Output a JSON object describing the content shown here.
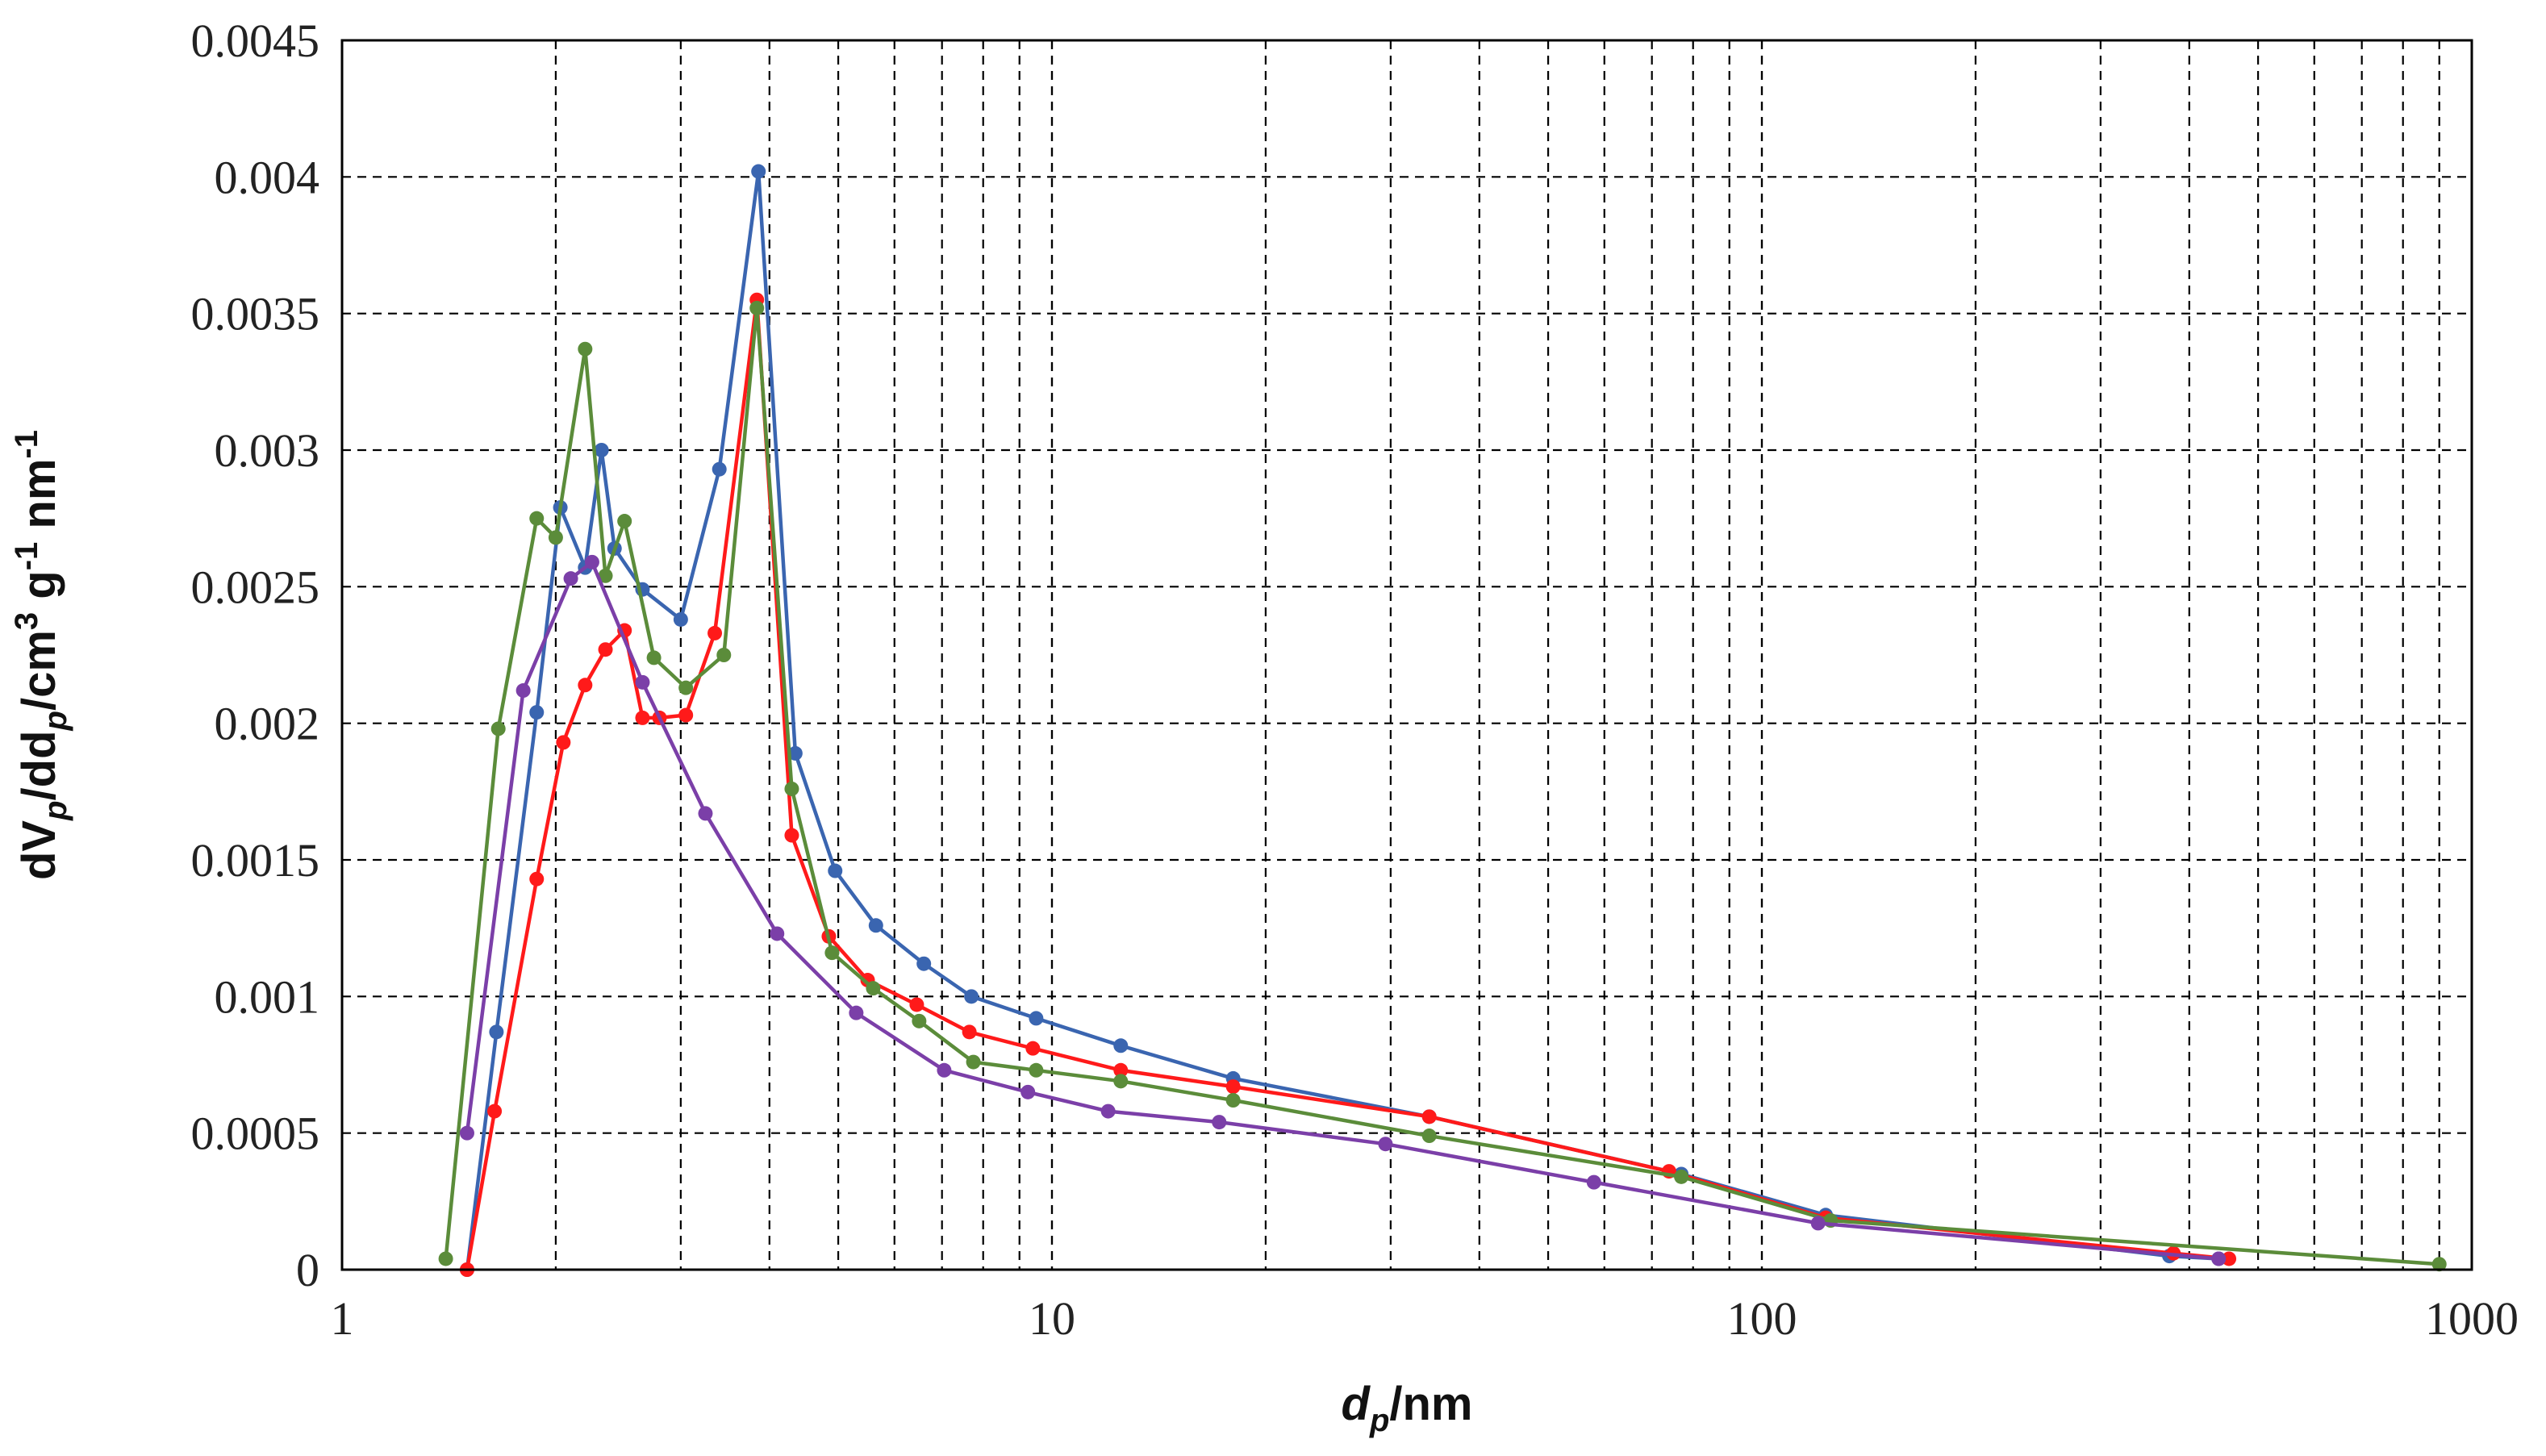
{
  "chart_data": {
    "type": "line",
    "title": "",
    "xlabel": {
      "main": "d",
      "sub": "p",
      "tail": "/nm"
    },
    "ylabel": {
      "p1": "dV",
      "s1": "p",
      "p2": "/dd",
      "s2": "p",
      "p3": "/cm",
      "sup1": "3",
      "p4": " g",
      "sup2": "-1",
      "p5": " nm",
      "sup3": "-1"
    },
    "x_scale": "log",
    "xlim": [
      1,
      1000
    ],
    "ylim": [
      0,
      0.0045
    ],
    "x_ticks": [
      "1",
      "10",
      "100",
      "1000"
    ],
    "y_ticks": [
      "0",
      "0.0005",
      "0.001",
      "0.0015",
      "0.002",
      "0.0025",
      "0.003",
      "0.0035",
      "0.004",
      "0.0045"
    ],
    "grid": true,
    "legend": "none",
    "series": [
      {
        "color": "#3A65B0",
        "points": [
          [
            1.5,
            0
          ],
          [
            1.65,
            0.00087
          ],
          [
            1.88,
            0.00204
          ],
          [
            2.03,
            0.00279
          ],
          [
            2.2,
            0.00257
          ],
          [
            2.32,
            0.003
          ],
          [
            2.42,
            0.00264
          ],
          [
            2.65,
            0.00249
          ],
          [
            3.0,
            0.00238
          ],
          [
            3.4,
            0.00293
          ],
          [
            3.86,
            0.00402
          ],
          [
            4.35,
            0.00189
          ],
          [
            4.95,
            0.00146
          ],
          [
            5.65,
            0.00126
          ],
          [
            6.6,
            0.00112
          ],
          [
            7.7,
            0.001
          ],
          [
            9.5,
            0.00092
          ],
          [
            12.5,
            0.00082
          ],
          [
            18,
            0.0007
          ],
          [
            34,
            0.00056
          ],
          [
            77,
            0.00035
          ],
          [
            123,
            0.0002
          ],
          [
            375,
            5e-05
          ],
          [
            440,
            4e-05
          ]
        ]
      },
      {
        "color": "#FF1A1A",
        "points": [
          [
            1.5,
            0
          ],
          [
            1.64,
            0.00058
          ],
          [
            1.88,
            0.00143
          ],
          [
            2.05,
            0.00193
          ],
          [
            2.2,
            0.00214
          ],
          [
            2.35,
            0.00227
          ],
          [
            2.5,
            0.00234
          ],
          [
            2.65,
            0.00202
          ],
          [
            2.8,
            0.00202
          ],
          [
            3.05,
            0.00203
          ],
          [
            3.35,
            0.00233
          ],
          [
            3.84,
            0.00355
          ],
          [
            4.3,
            0.00159
          ],
          [
            4.85,
            0.00122
          ],
          [
            5.5,
            0.00106
          ],
          [
            6.45,
            0.00097
          ],
          [
            7.65,
            0.00087
          ],
          [
            9.4,
            0.00081
          ],
          [
            12.5,
            0.00073
          ],
          [
            18,
            0.00067
          ],
          [
            34,
            0.00056
          ],
          [
            74,
            0.00036
          ],
          [
            123,
            0.00019
          ],
          [
            380,
            6e-05
          ],
          [
            455,
            4e-05
          ]
        ]
      },
      {
        "color": "#5B8C3A",
        "points": [
          [
            1.4,
            4e-05
          ],
          [
            1.66,
            0.00198
          ],
          [
            1.88,
            0.00275
          ],
          [
            2.0,
            0.00268
          ],
          [
            2.2,
            0.00337
          ],
          [
            2.35,
            0.00254
          ],
          [
            2.5,
            0.00274
          ],
          [
            2.75,
            0.00224
          ],
          [
            3.05,
            0.00213
          ],
          [
            3.45,
            0.00225
          ],
          [
            3.84,
            0.00352
          ],
          [
            4.3,
            0.00176
          ],
          [
            4.9,
            0.00116
          ],
          [
            5.6,
            0.00103
          ],
          [
            6.5,
            0.00091
          ],
          [
            7.75,
            0.00076
          ],
          [
            9.5,
            0.00073
          ],
          [
            12.5,
            0.00069
          ],
          [
            18,
            0.00062
          ],
          [
            34,
            0.00049
          ],
          [
            77,
            0.00034
          ],
          [
            125,
            0.00018
          ],
          [
            900,
            2e-05
          ]
        ]
      },
      {
        "color": "#7B3FA8",
        "points": [
          [
            1.5,
            0.0005
          ],
          [
            1.8,
            0.00212
          ],
          [
            2.1,
            0.00253
          ],
          [
            2.25,
            0.00259
          ],
          [
            2.65,
            0.00215
          ],
          [
            3.25,
            0.00167
          ],
          [
            4.1,
            0.00123
          ],
          [
            5.3,
            0.00094
          ],
          [
            7.05,
            0.00073
          ],
          [
            9.25,
            0.00065
          ],
          [
            12,
            0.00058
          ],
          [
            17.2,
            0.00054
          ],
          [
            29.5,
            0.00046
          ],
          [
            58,
            0.00032
          ],
          [
            120,
            0.00017
          ],
          [
            440,
            4e-05
          ]
        ]
      }
    ]
  }
}
